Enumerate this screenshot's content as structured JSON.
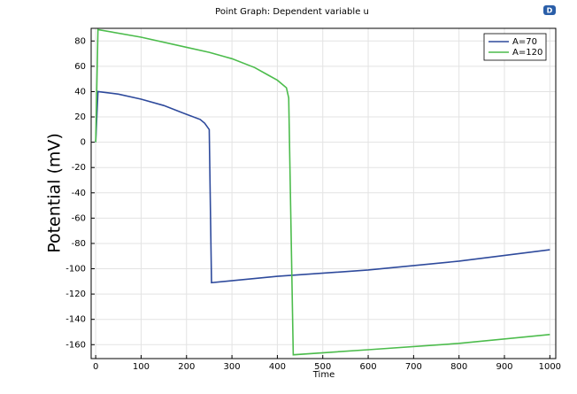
{
  "chart_data": {
    "type": "line",
    "title": "Point Graph: Dependent variable u",
    "x_label": "Time",
    "y_label": "Potential (mV)",
    "xlim": [
      -10,
      1013
    ],
    "ylim": [
      -171,
      90
    ],
    "xticks": [
      0,
      100,
      200,
      300,
      400,
      500,
      600,
      700,
      800,
      900,
      1000
    ],
    "yticks": [
      80,
      60,
      40,
      20,
      0,
      -20,
      -40,
      -60,
      -80,
      -100,
      -120,
      -140,
      -160
    ],
    "grid": true,
    "legend": "upper right",
    "series": [
      {
        "name": "A=70",
        "color": "#2e4a9c",
        "x": [
          0,
          5,
          50,
          100,
          150,
          200,
          230,
          240,
          250,
          255,
          400,
          600,
          800,
          1000
        ],
        "values": [
          0,
          40,
          38,
          34,
          29,
          22,
          18,
          15,
          10,
          -111,
          -106,
          -101,
          -94,
          -85
        ]
      },
      {
        "name": "A=120",
        "color": "#4cbc4c",
        "x": [
          0,
          5,
          100,
          200,
          250,
          300,
          350,
          380,
          400,
          420,
          425,
          435,
          600,
          800,
          1000
        ],
        "values": [
          0,
          89,
          83,
          75,
          71,
          66,
          59,
          53,
          49,
          43,
          35,
          -168,
          -164,
          -159,
          -152
        ]
      }
    ]
  }
}
